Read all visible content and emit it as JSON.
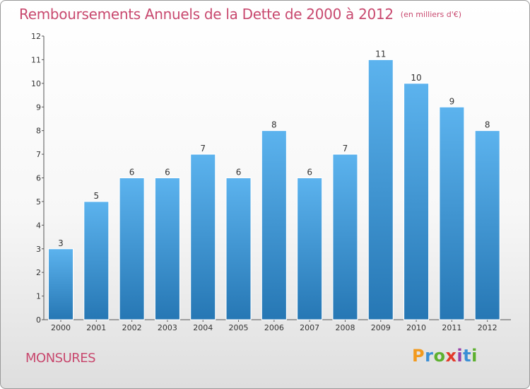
{
  "header": {
    "title": "Remboursements Annuels de la Dette de 2000 à 2012",
    "unit": "(en milliers d'€)"
  },
  "commune": "MONSURES",
  "brand": {
    "letters": [
      "P",
      "r",
      "o",
      "x",
      "i",
      "t",
      "i"
    ],
    "colors": [
      "#f29a1e",
      "#3a8fd6",
      "#5db02f",
      "#e23a2a",
      "#9a3fa8",
      "#3a8fd6",
      "#5db02f"
    ]
  },
  "colors": {
    "bar_top": "#5cb3ee",
    "bar_bottom": "#2677b4",
    "title": "#c8486e"
  },
  "chart_data": {
    "type": "bar",
    "categories": [
      "2000",
      "2001",
      "2002",
      "2003",
      "2004",
      "2005",
      "2006",
      "2007",
      "2008",
      "2009",
      "2010",
      "2011",
      "2012"
    ],
    "values": [
      3,
      5,
      6,
      6,
      7,
      6,
      8,
      6,
      7,
      11,
      10,
      9,
      8
    ],
    "labels": [
      "3",
      "5",
      "6",
      "6",
      "7",
      "6",
      "8",
      "6",
      "7",
      "11",
      "10",
      "9",
      "8"
    ],
    "yticks": [
      0,
      1,
      2,
      3,
      4,
      5,
      6,
      7,
      8,
      9,
      10,
      11,
      12
    ],
    "ylim": [
      0,
      12
    ],
    "grid": false,
    "legend": "none"
  }
}
